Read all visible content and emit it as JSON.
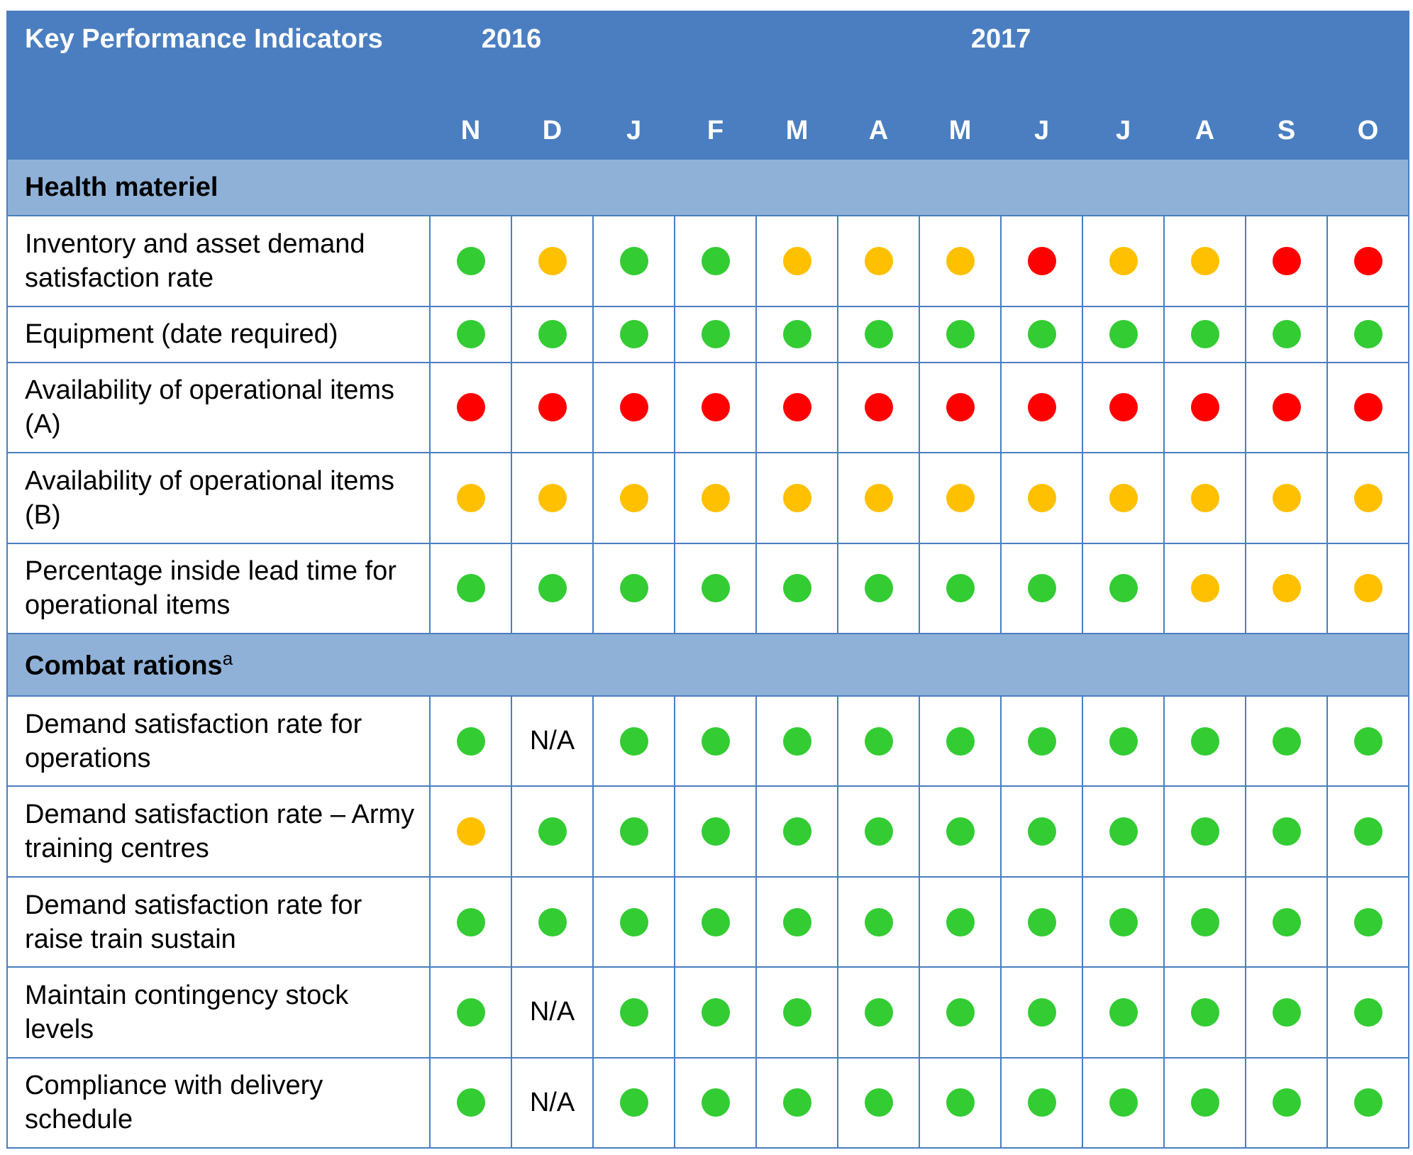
{
  "colors": {
    "header_bg": "#4a7ec1",
    "section_bg": "#8fb1d8",
    "border": "#4a7ebf",
    "G": "#33cc33",
    "A": "#ffc000",
    "R": "#ff0000"
  },
  "header": {
    "title": "Key Performance Indicators",
    "years": [
      {
        "label": "2016",
        "span": 2
      },
      {
        "label": "2017",
        "span": 10
      }
    ],
    "months": [
      "N",
      "D",
      "J",
      "F",
      "M",
      "A",
      "M",
      "J",
      "J",
      "A",
      "S",
      "O"
    ]
  },
  "sections": [
    {
      "title": "Health materiel",
      "note": "",
      "rows": [
        {
          "label": "Inventory and asset demand satisfaction rate",
          "status": [
            "G",
            "A",
            "G",
            "G",
            "A",
            "A",
            "A",
            "R",
            "A",
            "A",
            "R",
            "R"
          ]
        },
        {
          "label": "Equipment (date required)",
          "status": [
            "G",
            "G",
            "G",
            "G",
            "G",
            "G",
            "G",
            "G",
            "G",
            "G",
            "G",
            "G"
          ]
        },
        {
          "label": "Availability of operational items (A)",
          "status": [
            "R",
            "R",
            "R",
            "R",
            "R",
            "R",
            "R",
            "R",
            "R",
            "R",
            "R",
            "R"
          ]
        },
        {
          "label": "Availability of operational items (B)",
          "status": [
            "A",
            "A",
            "A",
            "A",
            "A",
            "A",
            "A",
            "A",
            "A",
            "A",
            "A",
            "A"
          ]
        },
        {
          "label": "Percentage inside lead time for operational items",
          "status": [
            "G",
            "G",
            "G",
            "G",
            "G",
            "G",
            "G",
            "G",
            "G",
            "A",
            "A",
            "A"
          ]
        }
      ]
    },
    {
      "title": "Combat rations",
      "note": "a",
      "rows": [
        {
          "label": "Demand satisfaction rate for operations",
          "status": [
            "G",
            "N/A",
            "G",
            "G",
            "G",
            "G",
            "G",
            "G",
            "G",
            "G",
            "G",
            "G"
          ]
        },
        {
          "label": "Demand satisfaction rate – Army training centres",
          "status": [
            "A",
            "G",
            "G",
            "G",
            "G",
            "G",
            "G",
            "G",
            "G",
            "G",
            "G",
            "G"
          ]
        },
        {
          "label": "Demand satisfaction rate for raise train sustain",
          "status": [
            "G",
            "G",
            "G",
            "G",
            "G",
            "G",
            "G",
            "G",
            "G",
            "G",
            "G",
            "G"
          ]
        },
        {
          "label": "Maintain contingency stock levels",
          "status": [
            "G",
            "N/A",
            "G",
            "G",
            "G",
            "G",
            "G",
            "G",
            "G",
            "G",
            "G",
            "G"
          ]
        },
        {
          "label": "Compliance with delivery schedule",
          "status": [
            "G",
            "N/A",
            "G",
            "G",
            "G",
            "G",
            "G",
            "G",
            "G",
            "G",
            "G",
            "G"
          ]
        }
      ]
    }
  ]
}
